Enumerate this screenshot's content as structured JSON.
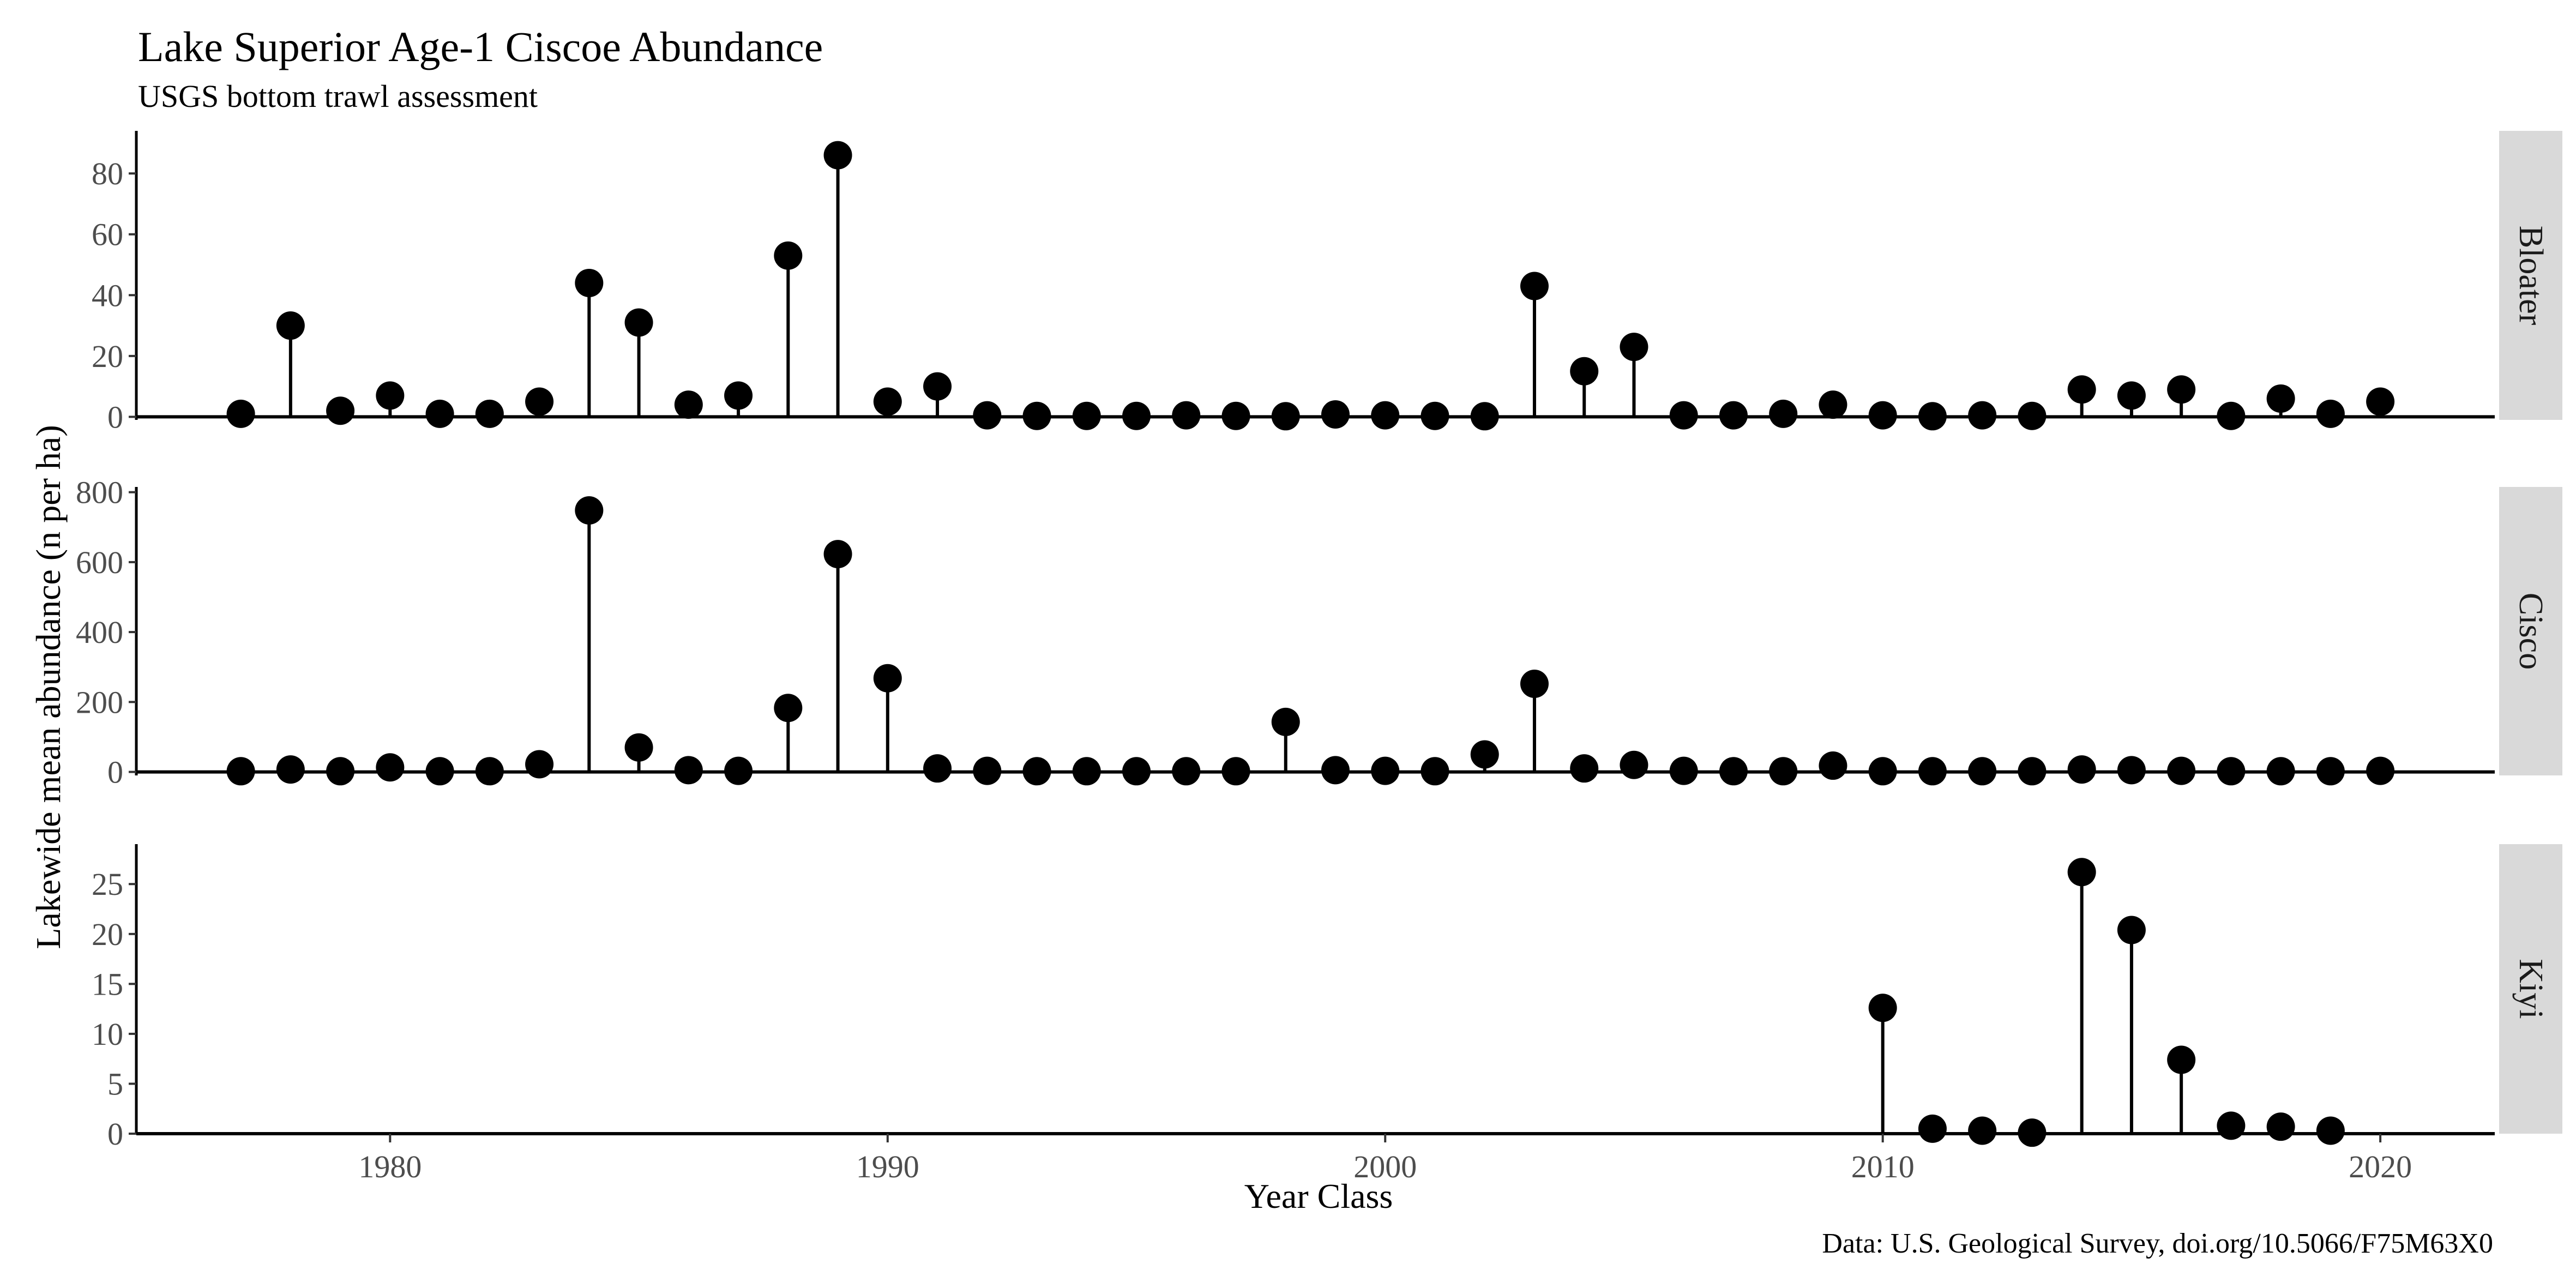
{
  "chart_data": {
    "type": "lollipop",
    "title": "Lake Superior Age-1 Ciscoe Abundance",
    "subtitle": "USGS bottom trawl assessment",
    "xlabel": "Year Class",
    "ylabel": "Lakewide mean abundance (n per ha)",
    "caption": "Data: U.S. Geological Survey, doi.org/10.5066/F75M63X0",
    "xlim": [
      1974.9,
      2022.3
    ],
    "x_ticks": [
      1980,
      1990,
      2000,
      2010,
      2020
    ],
    "facet_placement": "right",
    "grid": false,
    "marker_color": "#000000",
    "strip_color": "#d9d9d9",
    "panels": [
      {
        "name": "Bloater",
        "ylim": [
          -1,
          94
        ],
        "y_ticks": [
          0,
          20,
          40,
          60,
          80
        ],
        "x": [
          1977,
          1978,
          1979,
          1980,
          1981,
          1982,
          1983,
          1984,
          1985,
          1986,
          1987,
          1988,
          1989,
          1990,
          1991,
          1992,
          1993,
          1994,
          1995,
          1996,
          1997,
          1998,
          1999,
          2000,
          2001,
          2002,
          2003,
          2004,
          2005,
          2006,
          2007,
          2008,
          2009,
          2010,
          2011,
          2012,
          2013,
          2014,
          2015,
          2016,
          2017,
          2018,
          2019,
          2020
        ],
        "values": [
          1,
          30,
          2,
          7,
          1,
          1,
          5,
          44,
          31,
          4,
          7,
          53,
          86,
          5,
          10,
          0.5,
          0.3,
          0.3,
          0.3,
          0.5,
          0.3,
          0.2,
          0.8,
          0.5,
          0.3,
          0.2,
          43,
          15,
          23,
          0.5,
          0.5,
          1,
          4,
          0.5,
          0.2,
          0.5,
          0.3,
          9,
          7,
          9,
          0.3,
          6,
          1,
          5
        ]
      },
      {
        "name": "Cisco",
        "ylim": [
          -10,
          815
        ],
        "y_ticks": [
          0,
          200,
          400,
          600,
          800
        ],
        "x": [
          1977,
          1978,
          1979,
          1980,
          1981,
          1982,
          1983,
          1984,
          1985,
          1986,
          1987,
          1988,
          1989,
          1990,
          1991,
          1992,
          1993,
          1994,
          1995,
          1996,
          1997,
          1998,
          1999,
          2000,
          2001,
          2002,
          2003,
          2004,
          2005,
          2006,
          2007,
          2008,
          2009,
          2010,
          2011,
          2012,
          2013,
          2014,
          2015,
          2016,
          2017,
          2018,
          2019,
          2020
        ],
        "values": [
          2,
          7,
          2,
          13,
          2,
          2,
          22,
          748,
          70,
          5,
          3,
          183,
          623,
          268,
          10,
          3,
          2,
          2,
          2,
          2,
          2,
          143,
          5,
          3,
          2,
          50,
          252,
          10,
          20,
          3,
          2,
          2,
          18,
          2,
          2,
          2,
          2,
          7,
          5,
          3,
          2,
          2,
          2,
          3
        ]
      },
      {
        "name": "Kiyi",
        "ylim": [
          0,
          29
        ],
        "y_ticks": [
          0,
          5,
          10,
          15,
          20,
          25
        ],
        "x": [
          2010,
          2011,
          2012,
          2013,
          2014,
          2015,
          2016,
          2017,
          2018,
          2019
        ],
        "values": [
          12.6,
          0.5,
          0.3,
          0.1,
          26.2,
          20.4,
          7.4,
          0.8,
          0.7,
          0.3
        ]
      }
    ]
  }
}
